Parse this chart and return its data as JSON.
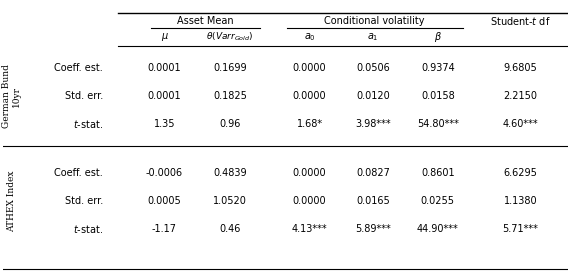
{
  "rows_section1": [
    [
      "Coeff. est.",
      "0.0001",
      "0.1699",
      "0.0000",
      "0.0506",
      "0.9374",
      "9.6805"
    ],
    [
      "Std. err.",
      "0.0001",
      "0.1825",
      "0.0000",
      "0.0120",
      "0.0158",
      "2.2150"
    ],
    [
      "t-stat.",
      "1.35",
      "0.96",
      "1.68*",
      "3.98***",
      "54.80***",
      "4.60***"
    ]
  ],
  "rows_section2": [
    [
      "Coeff. est.",
      "-0.0006",
      "0.4839",
      "0.0000",
      "0.0827",
      "0.8601",
      "6.6295"
    ],
    [
      "Std. err.",
      "0.0005",
      "1.0520",
      "0.0000",
      "0.0165",
      "0.0255",
      "1.1380"
    ],
    [
      "t-stat.",
      "-1.17",
      "0.46",
      "4.13***",
      "5.89***",
      "44.90***",
      "5.71***"
    ]
  ],
  "label1": "German Bund\n10yr",
  "label2": "ATHEX Index",
  "bg_color": "#ffffff",
  "text_color": "#000000",
  "fs": 7.0,
  "fs_header": 7.0
}
